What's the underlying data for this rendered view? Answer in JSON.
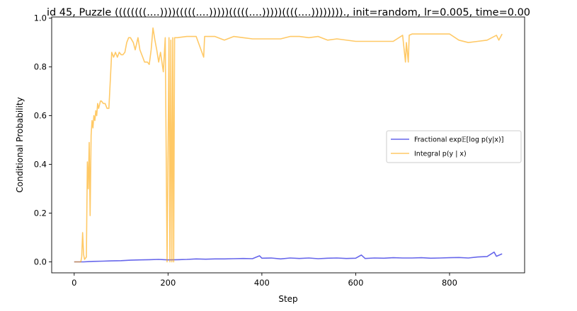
{
  "chart_data": {
    "type": "line",
    "title": "id 45, Puzzle ((((((((....))))(((((....)))))(((((....)))))((((....))))))))., init=random, lr=0.005, time=0.00",
    "xlabel": "Step",
    "ylabel": "Conditional Probability",
    "xlim": [
      -48,
      960
    ],
    "ylim": [
      -0.045,
      1.005
    ],
    "xticks": [
      0,
      200,
      400,
      600,
      800
    ],
    "yticks": [
      0.0,
      0.2,
      0.4,
      0.6,
      0.8,
      1.0
    ],
    "xtick_labels": [
      "0",
      "200",
      "400",
      "600",
      "800"
    ],
    "ytick_labels": [
      "0.0",
      "0.2",
      "0.4",
      "0.6",
      "0.8",
      "1.0"
    ],
    "grid": false,
    "legend_position": "center-right",
    "series": [
      {
        "name": "Fractional exp𝔼[log p(y|x)]",
        "color": "#0000dd",
        "x": [
          0,
          20,
          40,
          60,
          80,
          100,
          120,
          140,
          160,
          180,
          200,
          220,
          240,
          260,
          280,
          300,
          320,
          340,
          360,
          380,
          395,
          400,
          420,
          440,
          460,
          480,
          500,
          520,
          540,
          560,
          580,
          600,
          612,
          620,
          640,
          660,
          680,
          700,
          720,
          740,
          760,
          780,
          800,
          820,
          840,
          860,
          880,
          895,
          900,
          912
        ],
        "y": [
          0.0,
          0.0,
          0.002,
          0.003,
          0.004,
          0.005,
          0.007,
          0.008,
          0.009,
          0.01,
          0.008,
          0.009,
          0.01,
          0.012,
          0.011,
          0.012,
          0.012,
          0.013,
          0.014,
          0.013,
          0.025,
          0.015,
          0.016,
          0.012,
          0.016,
          0.014,
          0.016,
          0.013,
          0.015,
          0.016,
          0.014,
          0.015,
          0.028,
          0.014,
          0.016,
          0.015,
          0.017,
          0.016,
          0.016,
          0.017,
          0.015,
          0.016,
          0.017,
          0.018,
          0.016,
          0.02,
          0.022,
          0.04,
          0.023,
          0.033
        ]
      },
      {
        "name": "Integral p(y | x)",
        "color": "#ffa500",
        "x": [
          0,
          14,
          16,
          18,
          20,
          22,
          26,
          28,
          30,
          32,
          34,
          36,
          38,
          40,
          42,
          44,
          46,
          48,
          50,
          52,
          56,
          58,
          62,
          66,
          70,
          74,
          80,
          84,
          88,
          92,
          96,
          100,
          104,
          108,
          112,
          116,
          120,
          126,
          130,
          136,
          140,
          146,
          150,
          156,
          160,
          164,
          168,
          172,
          176,
          180,
          184,
          190,
          194,
          198,
          202,
          204,
          206,
          208,
          210,
          212,
          214,
          216,
          220,
          240,
          260,
          276,
          278,
          280,
          300,
          320,
          340,
          360,
          380,
          400,
          440,
          460,
          480,
          500,
          520,
          540,
          560,
          600,
          640,
          680,
          700,
          706,
          708,
          712,
          714,
          720,
          780,
          800,
          820,
          840,
          860,
          880,
          900,
          905,
          912
        ],
        "y": [
          0.0,
          0.0,
          0.02,
          0.12,
          0.03,
          0.01,
          0.02,
          0.41,
          0.3,
          0.49,
          0.19,
          0.52,
          0.58,
          0.55,
          0.6,
          0.58,
          0.62,
          0.6,
          0.65,
          0.63,
          0.66,
          0.66,
          0.65,
          0.65,
          0.63,
          0.63,
          0.86,
          0.84,
          0.86,
          0.84,
          0.86,
          0.85,
          0.85,
          0.86,
          0.9,
          0.92,
          0.92,
          0.9,
          0.87,
          0.92,
          0.87,
          0.84,
          0.82,
          0.82,
          0.81,
          0.87,
          0.96,
          0.91,
          0.87,
          0.82,
          0.86,
          0.78,
          0.92,
          0.0,
          0.92,
          0.0,
          0.91,
          0.0,
          0.92,
          0.0,
          0.92,
          0.92,
          0.92,
          0.925,
          0.925,
          0.84,
          0.925,
          0.925,
          0.925,
          0.91,
          0.925,
          0.92,
          0.915,
          0.915,
          0.915,
          0.925,
          0.925,
          0.92,
          0.925,
          0.91,
          0.915,
          0.905,
          0.905,
          0.905,
          0.93,
          0.82,
          0.9,
          0.82,
          0.93,
          0.935,
          0.935,
          0.935,
          0.91,
          0.9,
          0.905,
          0.91,
          0.93,
          0.91,
          0.935
        ]
      }
    ]
  }
}
